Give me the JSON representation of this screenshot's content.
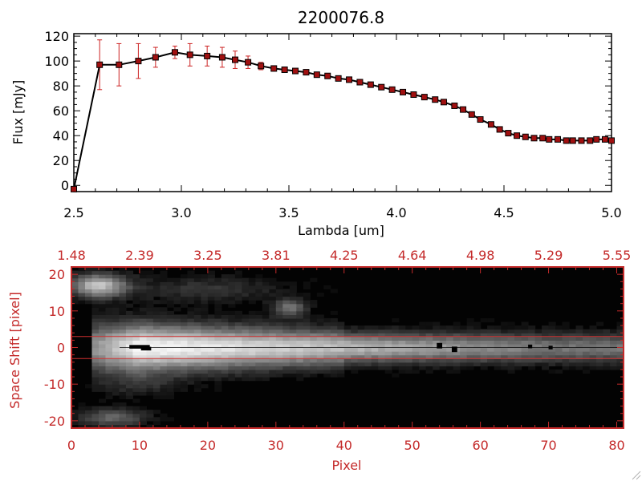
{
  "chart_data": [
    {
      "type": "line",
      "title": "2200076.8",
      "xlabel": "Lambda [um]",
      "ylabel": "Flux [mJy]",
      "xlim": [
        2.5,
        5.0
      ],
      "ylim": [
        -5,
        122
      ],
      "x_ticks": [
        "2.5",
        "3.0",
        "3.5",
        "4.0",
        "4.5",
        "5.0"
      ],
      "y_ticks": [
        "0",
        "20",
        "40",
        "60",
        "80",
        "100",
        "120"
      ],
      "x_tick_values": [
        2.5,
        3.0,
        3.5,
        4.0,
        4.5,
        5.0
      ],
      "y_tick_values": [
        0,
        20,
        40,
        60,
        80,
        100,
        120
      ],
      "line_color": "#000000",
      "marker_color": "#a01010",
      "errorbar_color": "#cc2222",
      "series": [
        {
          "x": [
            2.5,
            2.62,
            2.71,
            2.8,
            2.88,
            2.97,
            3.04,
            3.12,
            3.19,
            3.25,
            3.31,
            3.37,
            3.43,
            3.48,
            3.53,
            3.58,
            3.63,
            3.68,
            3.73,
            3.78,
            3.83,
            3.88,
            3.93,
            3.98,
            4.03,
            4.08,
            4.13,
            4.18,
            4.22,
            4.27,
            4.31,
            4.35,
            4.39,
            4.44,
            4.48,
            4.52,
            4.56,
            4.6,
            4.64,
            4.68,
            4.71,
            4.75,
            4.79,
            4.82,
            4.86,
            4.9,
            4.93,
            4.97,
            5.0
          ],
          "y": [
            -3,
            97,
            97,
            100,
            103,
            107,
            105,
            104,
            103,
            101,
            99,
            96,
            94,
            93,
            92,
            91,
            89,
            88,
            86,
            85,
            83,
            81,
            79,
            77,
            75,
            73,
            71,
            69,
            67,
            64,
            61,
            57,
            53,
            49,
            45,
            42,
            40,
            39,
            38,
            38,
            37,
            37,
            36,
            36,
            36,
            36,
            37,
            37,
            36
          ],
          "error": [
            0,
            20,
            17,
            14,
            8,
            5,
            9,
            8,
            8,
            7,
            5,
            3,
            2,
            2,
            1.5,
            1.5,
            1.5,
            1.5,
            1.5,
            1.5,
            1.5,
            1.5,
            1.5,
            1.5,
            1.5,
            1.5,
            1.5,
            1.5,
            1.5,
            1.5,
            1.5,
            1.5,
            1.5,
            1.5,
            1.5,
            1.5,
            1.5,
            1.5,
            1.5,
            1.5,
            1.5,
            1.5,
            1.5,
            1.5,
            1.5,
            1.5,
            1.5,
            1.5,
            1.5
          ]
        }
      ]
    },
    {
      "type": "heatmap",
      "xlabel": "Pixel",
      "ylabel": "Space Shift [pixel]",
      "xlim": [
        0,
        81
      ],
      "ylim": [
        -22,
        22
      ],
      "x_ticks": [
        "0",
        "10",
        "20",
        "30",
        "40",
        "50",
        "60",
        "70",
        "80"
      ],
      "x_tick_values": [
        0,
        10,
        20,
        30,
        40,
        50,
        60,
        70,
        80
      ],
      "y_ticks": [
        "-20",
        "-10",
        "0",
        "10",
        "20"
      ],
      "y_tick_values": [
        -20,
        -10,
        0,
        10,
        20
      ],
      "top_ticks": [
        "1.48",
        "2.39",
        "3.25",
        "3.81",
        "4.25",
        "4.64",
        "4.98",
        "5.29",
        "5.55"
      ],
      "top_tick_values": [
        0,
        10,
        20,
        30,
        40,
        50,
        60,
        70,
        80
      ],
      "axis_color": "#c42a2a",
      "aperture_lines": [
        3,
        -3
      ],
      "aperture_line_color": "#d03030",
      "center_line": 0,
      "center_line_color": "#000000"
    }
  ]
}
